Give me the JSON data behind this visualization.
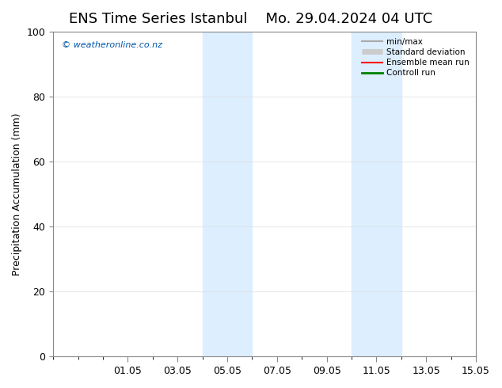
{
  "title_left": "ENS Time Series Istanbul",
  "title_right": "Mo. 29.04.2024 04 UTC",
  "ylabel": "Precipitation Accumulation (mm)",
  "watermark": "© weatheronline.co.nz",
  "ylim": [
    0,
    100
  ],
  "xlim_start": -1.0,
  "xlim_end": 16.0,
  "yticks": [
    0,
    20,
    40,
    60,
    80,
    100
  ],
  "xtick_positions": [
    2,
    4,
    6,
    8,
    10,
    12,
    14,
    16
  ],
  "xtick_labels": [
    "01.05",
    "03.05",
    "05.05",
    "07.05",
    "09.05",
    "11.05",
    "13.05",
    "15.05"
  ],
  "shaded_bands": [
    {
      "xmin": 5.0,
      "xmax": 7.0,
      "color": "#ddeeff"
    },
    {
      "xmin": 11.0,
      "xmax": 13.0,
      "color": "#ddeeff"
    }
  ],
  "legend_entries": [
    {
      "label": "min/max",
      "color": "#aaaaaa",
      "linewidth": 1.5
    },
    {
      "label": "Standard deviation",
      "color": "#cccccc",
      "linewidth": 5
    },
    {
      "label": "Ensemble mean run",
      "color": "red",
      "linewidth": 1.5
    },
    {
      "label": "Controll run",
      "color": "green",
      "linewidth": 2
    }
  ],
  "bg_color": "#ffffff",
  "plot_bg_color": "#ffffff",
  "watermark_color": "#0055aa",
  "title_fontsize": 13,
  "tick_fontsize": 9,
  "ylabel_fontsize": 9
}
